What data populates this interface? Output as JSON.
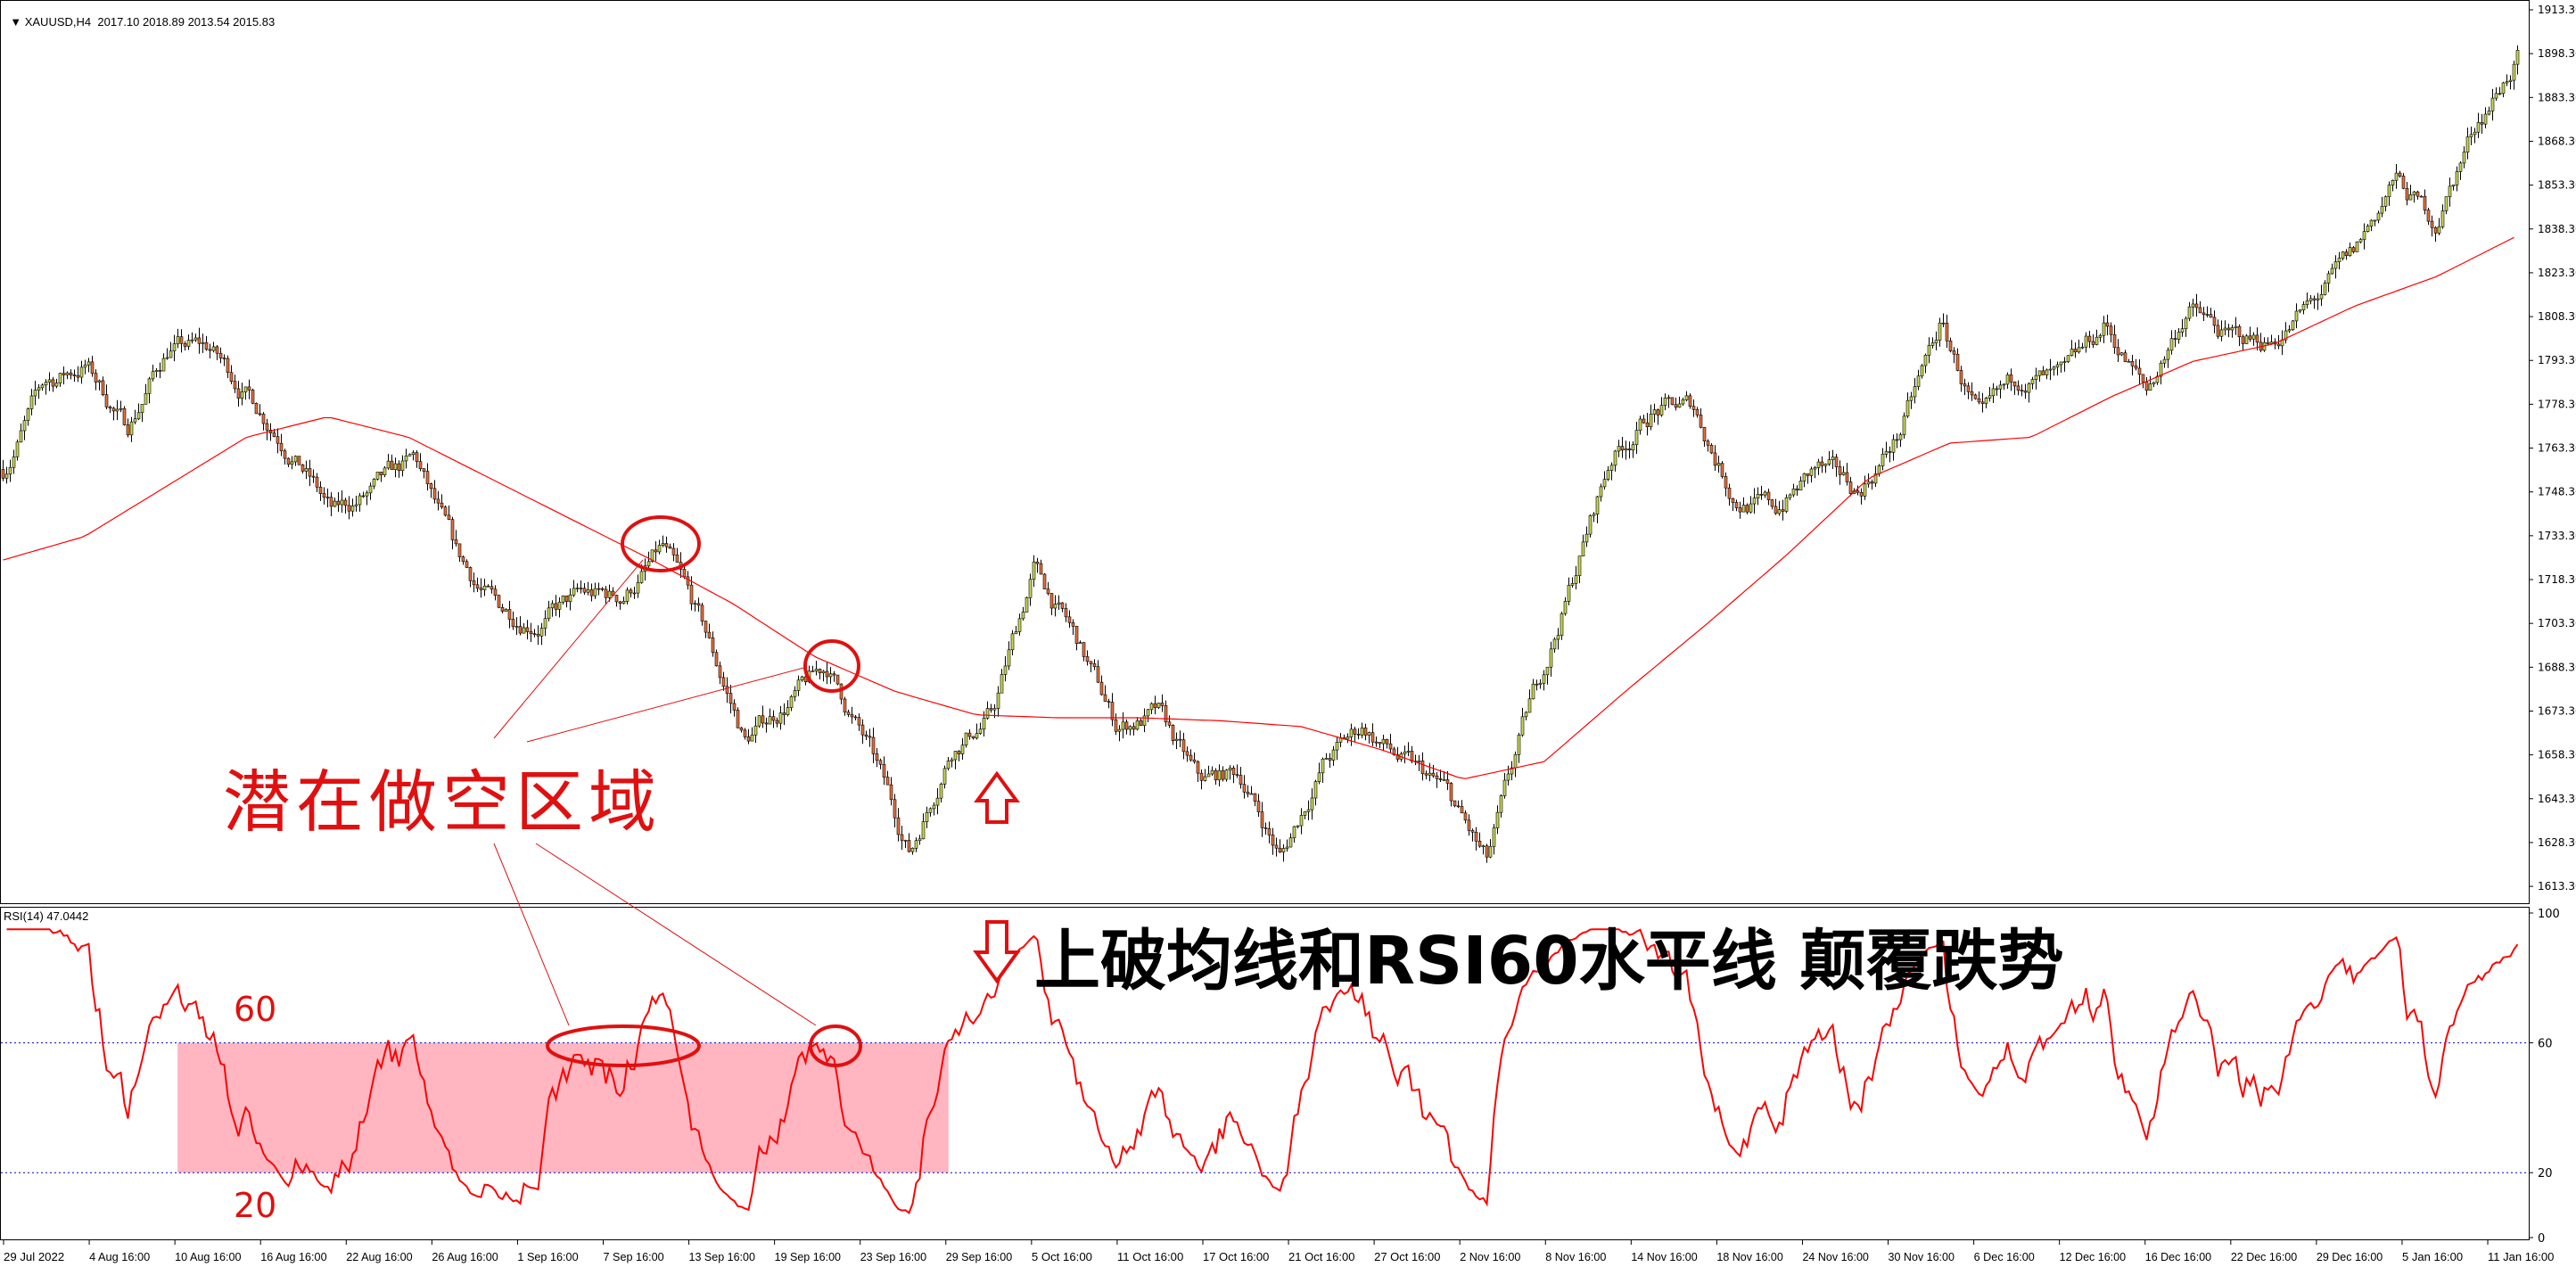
{
  "header": {
    "symbol_timeframe": "XAUUSD,H4",
    "ohlc": "2017.10 2018.89 2013.54 2015.83"
  },
  "rsi_panel": {
    "label": "RSI(14) 47.0442"
  },
  "annotations": {
    "short_zone": "潜在做空区域",
    "breakout": "上破均线和RSI60水平线 颠覆跌势",
    "level_60": "60",
    "level_20": "20"
  },
  "colors": {
    "bull_candle": "#c8d850",
    "bear_candle": "#e8703a",
    "moving_average": "#ff0000",
    "rsi_line": "#ff0000",
    "rsi_levels": "#0000cc",
    "annotation": "#e01010",
    "zone_fill": "#ffb6c1"
  },
  "chart_data": [
    {
      "type": "candlestick",
      "title": "XAUUSD,H4",
      "y_axis_ticks": [
        "1913.30",
        "1898.30",
        "1883.30",
        "1868.30",
        "1853.30",
        "1838.30",
        "1823.30",
        "1808.30",
        "1793.30",
        "1778.30",
        "1763.30",
        "1748.30",
        "1733.30",
        "1718.30",
        "1703.30",
        "1688.30",
        "1673.30",
        "1658.30",
        "1643.30",
        "1628.30",
        "1613.30"
      ],
      "ylim": [
        1613.3,
        1913.3
      ],
      "x_axis_ticks": [
        "29 Jul 2022",
        "4 Aug 16:00",
        "10 Aug 16:00",
        "16 Aug 16:00",
        "22 Aug 16:00",
        "26 Aug 16:00",
        "1 Sep 16:00",
        "7 Sep 16:00",
        "13 Sep 16:00",
        "19 Sep 16:00",
        "23 Sep 16:00",
        "29 Sep 16:00",
        "5 Oct 16:00",
        "11 Oct 16:00",
        "17 Oct 16:00",
        "21 Oct 16:00",
        "27 Oct 16:00",
        "2 Nov 16:00",
        "8 Nov 16:00",
        "14 Nov 16:00",
        "18 Nov 16:00",
        "24 Nov 16:00",
        "30 Nov 16:00",
        "6 Dec 16:00",
        "12 Dec 16:00",
        "16 Dec 16:00",
        "22 Dec 16:00",
        "29 Dec 16:00",
        "5 Jan 16:00",
        "11 Jan 16:00"
      ],
      "approx_closes_evenly_spaced": [
        1756,
        1785,
        1792,
        1770,
        1798,
        1797,
        1781,
        1764,
        1740,
        1748,
        1758,
        1725,
        1708,
        1705,
        1712,
        1712,
        1728,
        1700,
        1663,
        1676,
        1688,
        1660,
        1625,
        1662,
        1672,
        1722,
        1698,
        1668,
        1672,
        1648,
        1652,
        1623,
        1655,
        1668,
        1655,
        1645,
        1620,
        1672,
        1715,
        1760,
        1776,
        1777,
        1747,
        1742,
        1756,
        1748,
        1768,
        1805,
        1770,
        1788,
        1785,
        1805,
        1782,
        1812,
        1800,
        1800,
        1812,
        1828,
        1855,
        1840,
        1875,
        1897
      ],
      "moving_average_evenly_spaced": [
        1725,
        1733,
        1750,
        1767,
        1774,
        1767,
        1753,
        1739,
        1725,
        1710,
        1692,
        1680,
        1672,
        1671,
        1671,
        1670,
        1668,
        1660,
        1650,
        1656,
        1680,
        1703,
        1727,
        1753,
        1765,
        1767,
        1781,
        1793,
        1799,
        1812,
        1822,
        1836
      ]
    },
    {
      "type": "line",
      "title": "RSI(14) 47.0442",
      "y_axis_ticks": [
        "100",
        "60",
        "20",
        "0"
      ],
      "ylim": [
        0,
        100
      ],
      "levels": [
        60,
        20
      ],
      "highlight_zone": {
        "from_tick": "10 Aug 16:00",
        "to_tick": "29 Sep 16:00",
        "y_range": [
          20,
          60
        ]
      }
    }
  ]
}
